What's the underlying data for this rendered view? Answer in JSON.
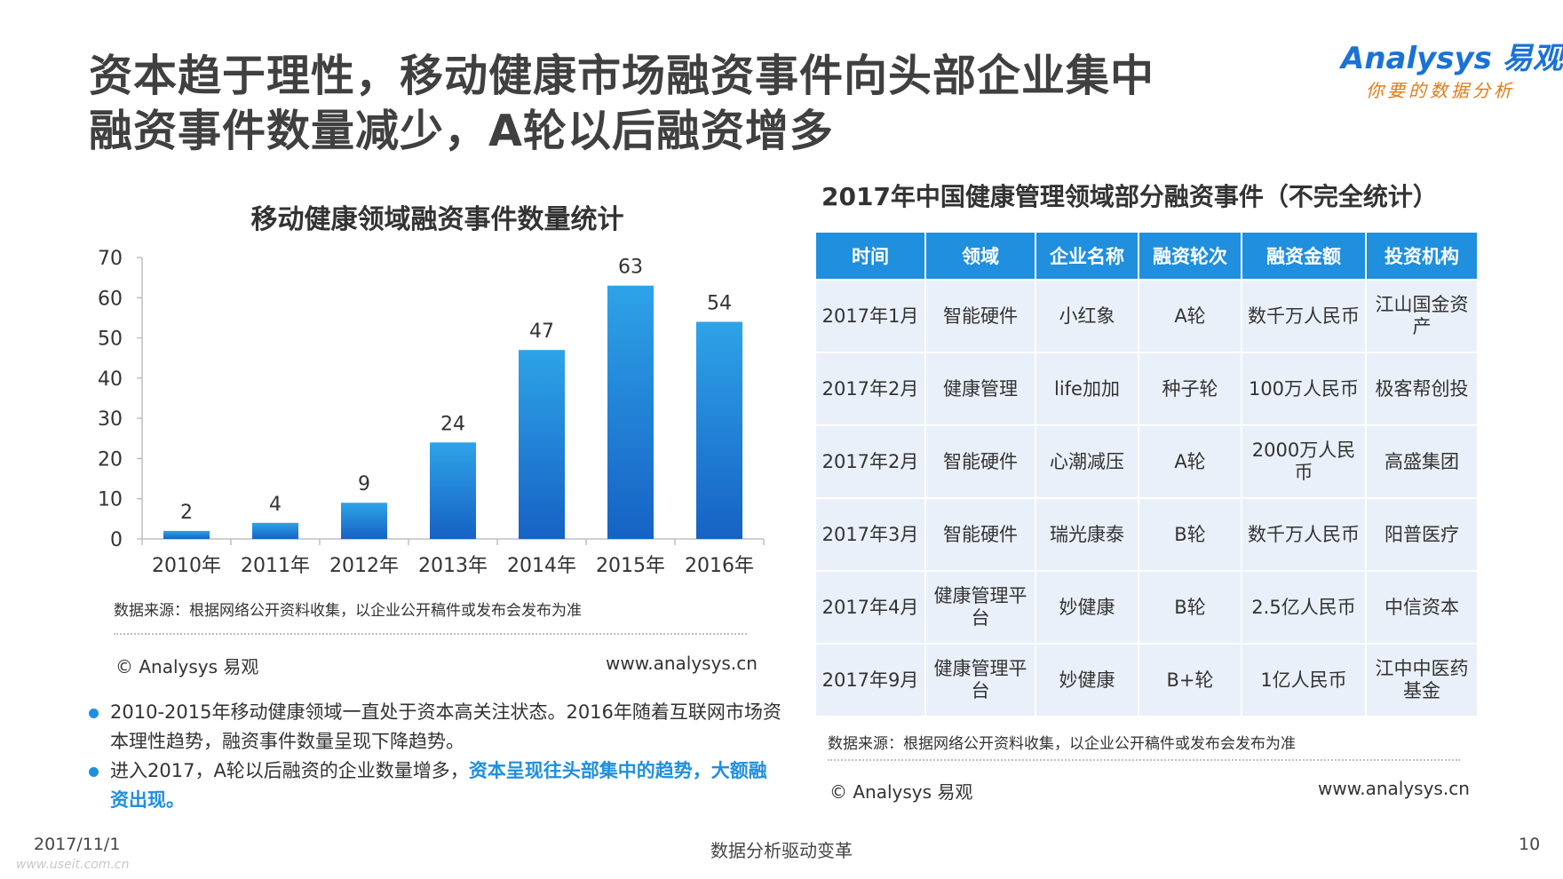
{
  "header": {
    "title_line1": "资本趋于理性，移动健康市场融资事件向头部企业集中",
    "title_line2": "融资事件数量减少，A轮以后融资增多"
  },
  "logo": {
    "name": "Analysys 易观",
    "tagline": "你要的数据分析"
  },
  "chart_data": {
    "type": "bar",
    "title": "移动健康领域融资事件数量统计",
    "categories": [
      "2010年",
      "2011年",
      "2012年",
      "2013年",
      "2014年",
      "2015年",
      "2016年"
    ],
    "values": [
      2,
      4,
      9,
      24,
      47,
      63,
      54
    ],
    "ylim": [
      0,
      70
    ],
    "yticks": [
      0,
      10,
      20,
      30,
      40,
      50,
      60,
      70
    ],
    "xlabel": "",
    "ylabel": "",
    "grid": false,
    "colors": {
      "bar_top": "#2ea3e8",
      "bar_bottom": "#1662c4"
    }
  },
  "left_footer": {
    "source": "数据来源：根据网络公开资料收集，以企业公开稿件或发布会发布为准",
    "copyright": "© Analysys 易观",
    "url": "www.analysys.cn"
  },
  "bullets": {
    "b1": "2010-2015年移动健康领域一直处于资本高关注状态。2016年随着互联网市场资本理性趋势，融资事件数量呈现下降趋势。",
    "b2_plain": "进入2017，A轮以后融资的企业数量增多，",
    "b2_highlight": "资本呈现往头部集中的趋势，大额融资出现。"
  },
  "table": {
    "title": "2017年中国健康管理领域部分融资事件（不完全统计）",
    "headers": [
      "时间",
      "领域",
      "企业名称",
      "融资轮次",
      "融资金额",
      "投资机构"
    ],
    "rows": [
      [
        "2017年1月",
        "智能硬件",
        "小红象",
        "A轮",
        "数千万人民币",
        "江山国金资产"
      ],
      [
        "2017年2月",
        "健康管理",
        "life加加",
        "种子轮",
        "100万人民币",
        "极客帮创投"
      ],
      [
        "2017年2月",
        "智能硬件",
        "心潮减压",
        "A轮",
        "2000万人民币",
        "高盛集团"
      ],
      [
        "2017年3月",
        "智能硬件",
        "瑞光康泰",
        "B轮",
        "数千万人民币",
        "阳普医疗"
      ],
      [
        "2017年4月",
        "健康管理平台",
        "妙健康",
        "B轮",
        "2.5亿人民币",
        "中信资本"
      ],
      [
        "2017年9月",
        "健康管理平台",
        "妙健康",
        "B+轮",
        "1亿人民币",
        "江中中医药基金"
      ]
    ],
    "header_color": "#1f8fde",
    "cell_color": "#eaf0f9"
  },
  "right_footer": {
    "source": "数据来源：根据网络公开资料收集，以企业公开稿件或发布会发布为准",
    "copyright": "© Analysys 易观",
    "url": "www.analysys.cn"
  },
  "footer": {
    "date": "2017/11/1",
    "slogan": "数据分析驱动变革",
    "page": "10",
    "watermark_url": "www.useit.com.cn"
  }
}
